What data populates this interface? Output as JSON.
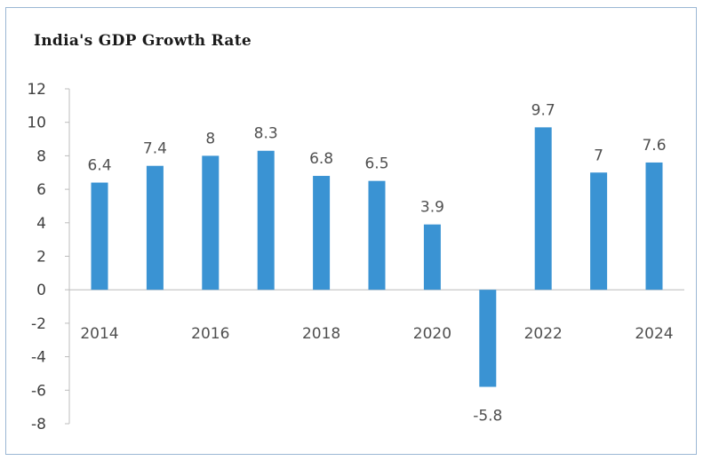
{
  "chart_data": {
    "type": "bar",
    "title": "India's GDP Growth Rate",
    "xlabel": "",
    "ylabel": "",
    "x": [
      2014,
      2015,
      2016,
      2017,
      2018,
      2019,
      2020,
      2021,
      2022,
      2023,
      2024
    ],
    "x_tick_labels": [
      "2014",
      "2016",
      "2018",
      "2020",
      "2022",
      "2024"
    ],
    "values": [
      6.4,
      7.4,
      8,
      8.3,
      6.8,
      6.5,
      3.9,
      -5.8,
      9.7,
      7,
      7.6
    ],
    "data_labels": [
      "6.4",
      "7.4",
      "8",
      "8.3",
      "6.8",
      "6.5",
      "3.9",
      "-5.8",
      "9.7",
      "7",
      "7.6"
    ],
    "ylim": [
      -8,
      12
    ],
    "y_ticks": [
      12,
      10,
      8,
      6,
      4,
      2,
      0,
      -2,
      -4,
      -6,
      -8
    ],
    "grid": false,
    "legend": "none",
    "colors": {
      "bar": "#3a93d3",
      "frame": "#9bb7d4",
      "axis": "#bcbcbc"
    }
  }
}
